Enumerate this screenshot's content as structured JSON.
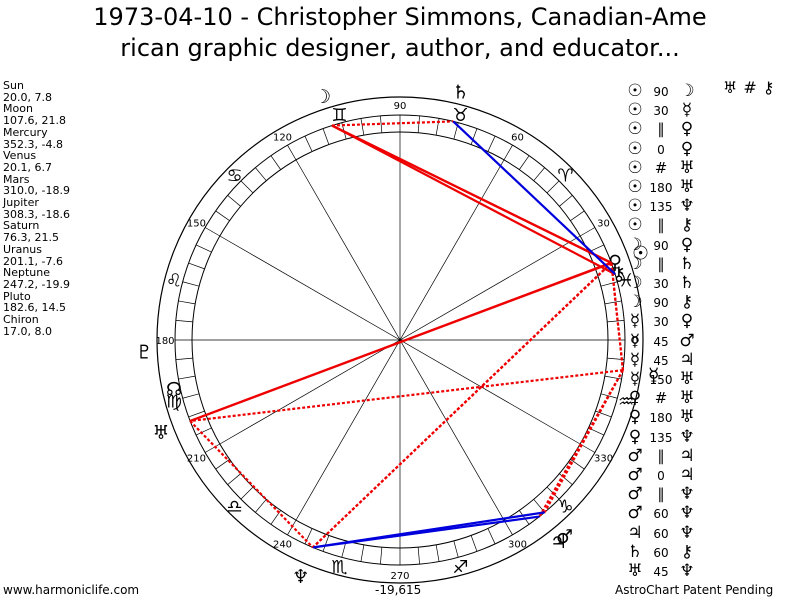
{
  "title": {
    "line1": "1973-04-10 - Christopher Simmons, Canadian-Ame",
    "line2": "rican graphic designer, author, and educator..."
  },
  "planets": [
    {
      "name": "Sun",
      "coords": "20.0, 7.8",
      "glyph": "☉",
      "lon": 20.0
    },
    {
      "name": "Moon",
      "coords": "107.6, 21.8",
      "glyph": "☽",
      "lon": 107.6
    },
    {
      "name": "Mercury",
      "coords": "352.3, -4.8",
      "glyph": "☿",
      "lon": 352.3
    },
    {
      "name": "Venus",
      "coords": "20.1, 6.7",
      "glyph": "♀",
      "lon": 20.1
    },
    {
      "name": "Mars",
      "coords": "310.0, -18.9",
      "glyph": "♂",
      "lon": 310.0
    },
    {
      "name": "Jupiter",
      "coords": "308.3, -18.6",
      "glyph": "♃",
      "lon": 308.3
    },
    {
      "name": "Saturn",
      "coords": "76.3, 21.5",
      "glyph": "♄",
      "lon": 76.3
    },
    {
      "name": "Uranus",
      "coords": "201.1, -7.6",
      "glyph": "♅",
      "lon": 201.1
    },
    {
      "name": "Neptune",
      "coords": "247.2, -19.9",
      "glyph": "♆",
      "lon": 247.2
    },
    {
      "name": "Pluto",
      "coords": "182.6, 14.5",
      "glyph": "♇",
      "lon": 182.6
    },
    {
      "name": "Chiron",
      "coords": "17.0, 8.0",
      "glyph": "⚷",
      "lon": 17.0
    }
  ],
  "wheel": {
    "degree_labels": [
      "90",
      "60",
      "30",
      "0",
      "330",
      "300",
      "270",
      "240",
      "210",
      "180",
      "150",
      "120"
    ],
    "zodiac_glyphs": [
      "♉",
      "♈",
      "♓",
      "♒",
      "♑",
      "♐",
      "♏",
      "♎",
      "♍",
      "♌",
      "♋",
      "♊"
    ],
    "node_glyph": "☊",
    "colors": {
      "opposition_square": "#ee0000",
      "trine_sextile": "#0000dd",
      "wheel": "#000000"
    }
  },
  "aspects": [
    {
      "p1": "☉",
      "aspect": "90",
      "p2": "☽",
      "color": "#ee0000"
    },
    {
      "p1": "☉",
      "aspect": "30",
      "p2": "☿",
      "color": "#000000"
    },
    {
      "p1": "☉",
      "aspect": "∥",
      "p2": "♀",
      "color": "#000000"
    },
    {
      "p1": "☉",
      "aspect": "0",
      "p2": "♀",
      "color": "#000000"
    },
    {
      "p1": "☉",
      "aspect": "#",
      "p2": "♅",
      "color": "#000000"
    },
    {
      "p1": "☉",
      "aspect": "180",
      "p2": "♅",
      "color": "#ee0000"
    },
    {
      "p1": "☉",
      "aspect": "135",
      "p2": "♆",
      "color": "#000000"
    },
    {
      "p1": "☉",
      "aspect": "∥",
      "p2": "⚷",
      "color": "#000000"
    },
    {
      "p1": "☽",
      "aspect": "90",
      "p2": "♀",
      "color": "#ee0000"
    },
    {
      "p1": "☽",
      "aspect": "∥",
      "p2": "♄",
      "color": "#000000"
    },
    {
      "p1": "☽",
      "aspect": "30",
      "p2": "♄",
      "color": "#000000"
    },
    {
      "p1": "☽",
      "aspect": "90",
      "p2": "⚷",
      "color": "#ee0000"
    },
    {
      "p1": "☿",
      "aspect": "30",
      "p2": "♀",
      "color": "#000000"
    },
    {
      "p1": "☿",
      "aspect": "45",
      "p2": "♂",
      "color": "#000000"
    },
    {
      "p1": "☿",
      "aspect": "45",
      "p2": "♃",
      "color": "#000000"
    },
    {
      "p1": "☿",
      "aspect": "150",
      "p2": "♅",
      "color": "#000000"
    },
    {
      "p1": "♀",
      "aspect": "#",
      "p2": "♅",
      "color": "#000000"
    },
    {
      "p1": "♀",
      "aspect": "180",
      "p2": "♅",
      "color": "#ee0000"
    },
    {
      "p1": "♀",
      "aspect": "135",
      "p2": "♆",
      "color": "#000000"
    },
    {
      "p1": "♂",
      "aspect": "∥",
      "p2": "♃",
      "color": "#000000"
    },
    {
      "p1": "♂",
      "aspect": "0",
      "p2": "♃",
      "color": "#000000"
    },
    {
      "p1": "♂",
      "aspect": "∥",
      "p2": "♆",
      "color": "#000000"
    },
    {
      "p1": "♂",
      "aspect": "60",
      "p2": "♆",
      "color": "#0000dd"
    },
    {
      "p1": "♃",
      "aspect": "60",
      "p2": "♆",
      "color": "#0000dd"
    },
    {
      "p1": "♄",
      "aspect": "60",
      "p2": "⚷",
      "color": "#0000dd"
    },
    {
      "p1": "♅",
      "aspect": "45",
      "p2": "♆",
      "color": "#000000"
    }
  ],
  "top_right_glyphs": [
    "♅",
    "#",
    "⚷"
  ],
  "footer": {
    "left": "www.harmoniclife.com",
    "center": "-19,615",
    "right": "AstroChart Patent Pending"
  }
}
